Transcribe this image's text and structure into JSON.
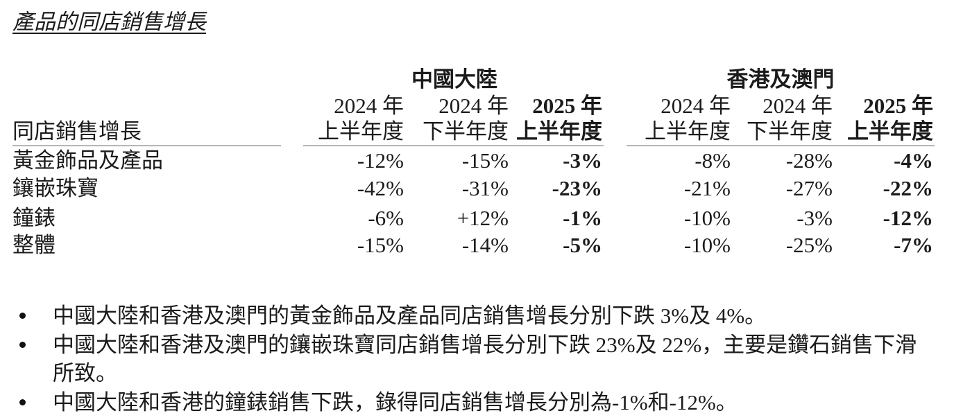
{
  "title": "產品的同店銷售增長",
  "table": {
    "row_header": "同店銷售增長",
    "groups": [
      {
        "name": "中國大陸",
        "columns": [
          {
            "year": "2024 年",
            "period": "上半年度"
          },
          {
            "year": "2024 年",
            "period": "下半年度"
          },
          {
            "year": "2025 年",
            "period": "上半年度"
          }
        ]
      },
      {
        "name": "香港及澳門",
        "columns": [
          {
            "year": "2024 年",
            "period": "上半年度"
          },
          {
            "year": "2024 年",
            "period": "下半年度"
          },
          {
            "year": "2025 年",
            "period": "上半年度"
          }
        ]
      }
    ],
    "rows": [
      {
        "label": "黃金飾品及產品",
        "values": [
          "-12%",
          "-15%",
          "-3%",
          "-8%",
          "-28%",
          "-4%"
        ]
      },
      {
        "label": "鑲嵌珠寶",
        "values": [
          "-42%",
          "-31%",
          "-23%",
          "-21%",
          "-27%",
          "-22%"
        ]
      },
      {
        "label": "鐘錶",
        "values": [
          "-6%",
          "+12%",
          "-1%",
          "-10%",
          "-3%",
          "-12%"
        ]
      },
      {
        "label": "整體",
        "values": [
          "-15%",
          "-14%",
          "-5%",
          "-10%",
          "-25%",
          "-7%"
        ]
      }
    ]
  },
  "bullets": [
    {
      "lines": [
        "中國大陸和香港及澳門的黃金飾品及產品同店銷售增長分別下跌 3%及 4%。"
      ]
    },
    {
      "lines": [
        "中國大陸和香港及澳門的鑲嵌珠寶同店銷售增長分別下跌 23%及 22%，主要是鑽石銷售下滑",
        "所致。"
      ]
    },
    {
      "lines": [
        "中國大陸和香港的鐘錶銷售下跌，錄得同店銷售增長分別為-1%和-12%。"
      ]
    }
  ]
}
